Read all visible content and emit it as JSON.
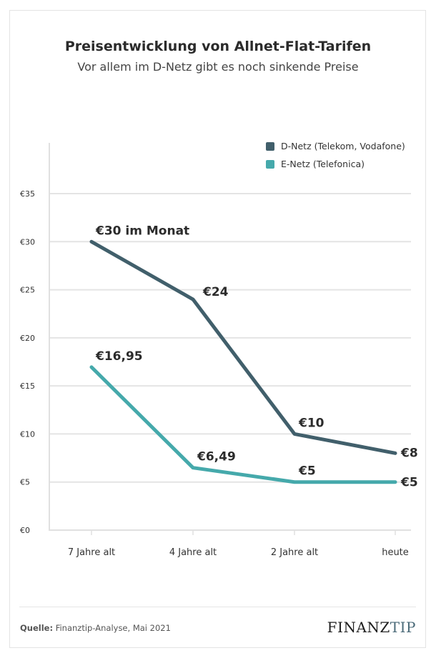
{
  "title": "Preisentwicklung von Allnet-Flat-Tarifen",
  "subtitle": "Vor allem im D-Netz gibt es noch sinkende Preise",
  "footer": {
    "source_label": "Quelle:",
    "source_text": "Finanztip-Analyse, Mai 2021",
    "logo_part1": "FINANZ",
    "logo_part2": "TIP"
  },
  "chart_data": {
    "type": "line",
    "title": "Preisentwicklung von Allnet-Flat-Tarifen",
    "subtitle": "Vor allem im D-Netz gibt es noch sinkende Preise",
    "xlabel": "",
    "ylabel": "",
    "x": [
      "7 Jahre alt",
      "4 Jahre alt",
      "2 Jahre alt",
      "heute"
    ],
    "ylim": [
      0,
      35
    ],
    "yticks": [
      0,
      5,
      10,
      15,
      20,
      25,
      30,
      35
    ],
    "ytick_labels": [
      "€0",
      "€5",
      "€10",
      "€15",
      "€20",
      "€25",
      "€30",
      "€35"
    ],
    "grid": true,
    "legend_position": "top-right",
    "series": [
      {
        "name": "D-Netz (Telekom, Vodafone)",
        "color": "#415f6b",
        "values": [
          30,
          24,
          10,
          8
        ],
        "labels": [
          "€30 im Monat",
          "€24",
          "€10",
          "€8"
        ]
      },
      {
        "name": "E-Netz (Telefonica)",
        "color": "#45a9ab",
        "values": [
          16.95,
          6.49,
          5,
          5
        ],
        "labels": [
          "€16,95",
          "€6,49",
          "€5",
          "€5"
        ]
      }
    ]
  }
}
